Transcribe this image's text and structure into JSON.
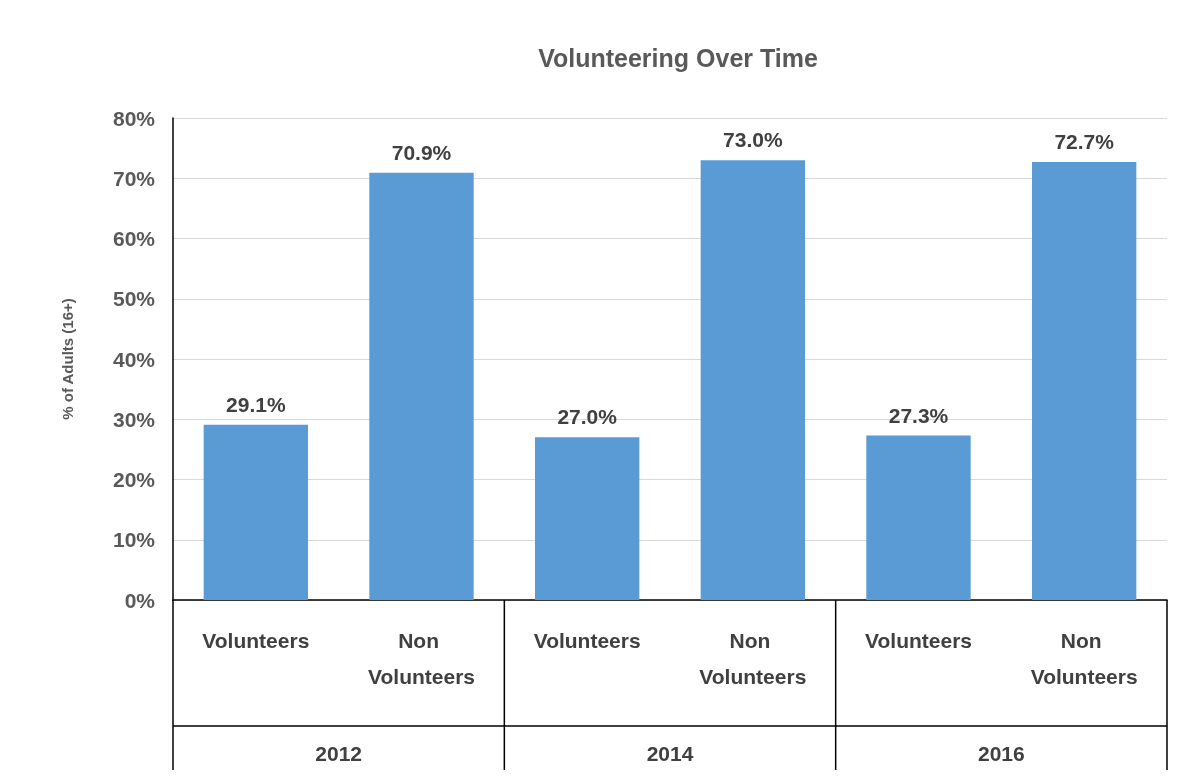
{
  "chart_data": {
    "type": "bar",
    "title": "Volunteering Over Time",
    "ylabel": "% of Adults (16+)",
    "categories": [
      "Volunteers",
      "Non Volunteers",
      "Volunteers",
      "Non Volunteers",
      "Volunteers",
      "Non Volunteers"
    ],
    "values": [
      29.1,
      70.9,
      27.0,
      73.0,
      27.3,
      72.7
    ],
    "value_labels": [
      "29.1%",
      "70.9%",
      "27.0%",
      "73.0%",
      "27.3%",
      "72.7%"
    ],
    "color": "#5b9bd5",
    "ylim": [
      0,
      80
    ],
    "yticks": [
      {
        "value": 0,
        "label": "0%"
      },
      {
        "value": 10,
        "label": "10%"
      },
      {
        "value": 20,
        "label": "20%"
      },
      {
        "value": 30,
        "label": "30%"
      },
      {
        "value": 40,
        "label": "40%"
      },
      {
        "value": 50,
        "label": "50%"
      },
      {
        "value": 60,
        "label": "60%"
      },
      {
        "value": 70,
        "label": "70%"
      },
      {
        "value": 80,
        "label": "80%"
      }
    ],
    "grid": "y",
    "annotations": [
      "2012",
      "2014",
      "2016"
    ]
  }
}
